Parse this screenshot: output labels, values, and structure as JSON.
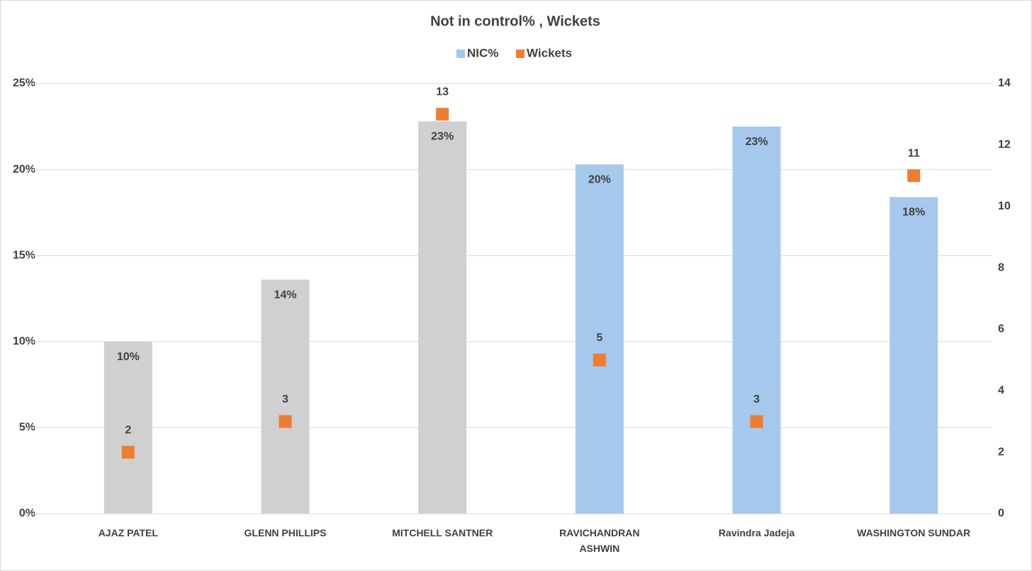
{
  "chart_data": {
    "type": "bar",
    "title": "Not in control% ,  Wickets",
    "categories": [
      "AJAZ PATEL",
      "GLENN PHILLIPS",
      "MITCHELL SANTNER",
      "RAVICHANDRAN ASHWIN",
      "Ravindra Jadeja",
      "WASHINGTON SUNDAR"
    ],
    "series": [
      {
        "name": "NIC%",
        "type": "bar",
        "color": "#a6c8ec",
        "colors": [
          "#d0d0d0",
          "#d0d0d0",
          "#d0d0d0",
          "#a6c8ec",
          "#a6c8ec",
          "#a6c8ec"
        ],
        "values": [
          10,
          13.6,
          22.8,
          20.3,
          22.5,
          18.4
        ],
        "value_labels": [
          "10%",
          "14%",
          "23%",
          "20%",
          "23%",
          "18%"
        ]
      },
      {
        "name": "Wickets",
        "type": "scatter",
        "axis": "y2",
        "color": "#ed7d31",
        "values": [
          2,
          3,
          13,
          5,
          3,
          11
        ]
      }
    ],
    "ylim": [
      0,
      25
    ],
    "yticks": [
      {
        "value": 0,
        "label": "0%"
      },
      {
        "value": 5,
        "label": "5%"
      },
      {
        "value": 10,
        "label": "10%"
      },
      {
        "value": 15,
        "label": "15%"
      },
      {
        "value": 20,
        "label": "20%"
      },
      {
        "value": 25,
        "label": "25%"
      }
    ],
    "y2lim": [
      0,
      14
    ],
    "y2ticks": [
      0,
      2,
      4,
      6,
      8,
      10,
      12,
      14
    ],
    "grid": true,
    "legend": "top"
  }
}
